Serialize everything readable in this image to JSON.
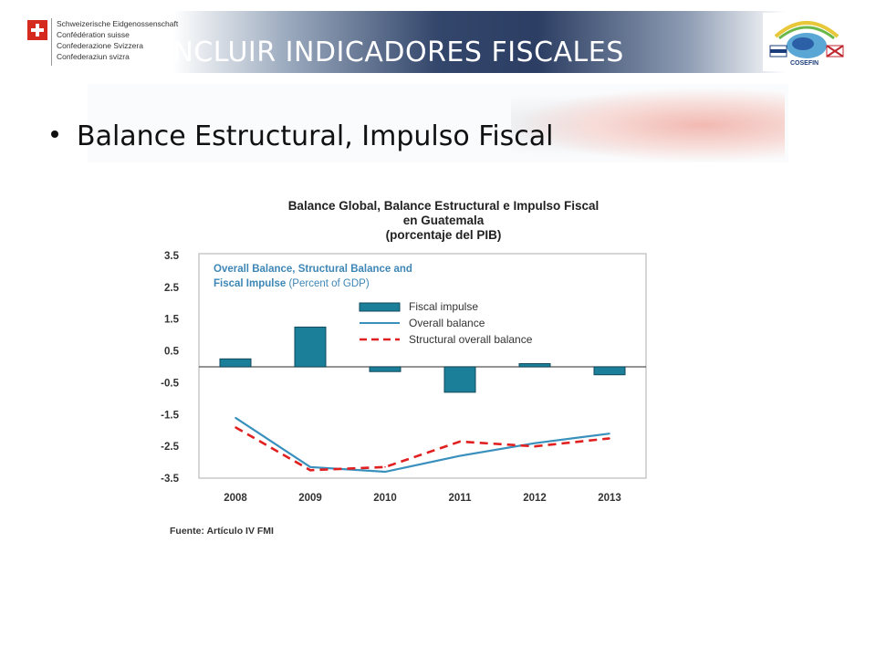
{
  "header": {
    "swiss_names": [
      "Schweizerische Eidgenossenschaft",
      "Confédération suisse",
      "Confederazione Svizzera",
      "Confederaziun svizra"
    ],
    "title": "INCLUIR INDICADORES FISCALES",
    "logo_text": "COSEFIN"
  },
  "bullet": "Balance Estructural, Impulso Fiscal",
  "chart_data": {
    "type": "bar",
    "title_lines": [
      "Balance Global,  Balance Estructural e Impulso  Fiscal",
      "en Guatemala",
      "(porcentaje del PIB)"
    ],
    "inner_title_line1": "Overall Balance, Structural  Balance and",
    "inner_title_line2_bold": "Fiscal Impulse",
    "inner_title_line2_note": "(Percent of GDP)",
    "categories": [
      "2008",
      "2009",
      "2010",
      "2011",
      "2012",
      "2013"
    ],
    "yticks": [
      "3.5",
      "2.5",
      "1.5",
      "0.5",
      "-0.5",
      "-1.5",
      "-2.5",
      "-3.5"
    ],
    "ylim": [
      -3.5,
      3.5
    ],
    "series": [
      {
        "name": "Fiscal impulse",
        "kind": "bar",
        "color": "#1c7f9a",
        "values": [
          0.25,
          1.25,
          -0.15,
          -0.8,
          0.1,
          -0.25
        ]
      },
      {
        "name": "Overall balance",
        "kind": "line",
        "color": "#3a90bd",
        "values": [
          -1.6,
          -3.15,
          -3.3,
          -2.8,
          -2.4,
          -2.1
        ]
      },
      {
        "name": "Structural overall balance",
        "kind": "dashed-line",
        "color": "#e02020",
        "values": [
          -1.9,
          -3.25,
          -3.15,
          -2.35,
          -2.5,
          -2.25
        ]
      }
    ],
    "source": "Fuente: Artículo IV FMI"
  }
}
